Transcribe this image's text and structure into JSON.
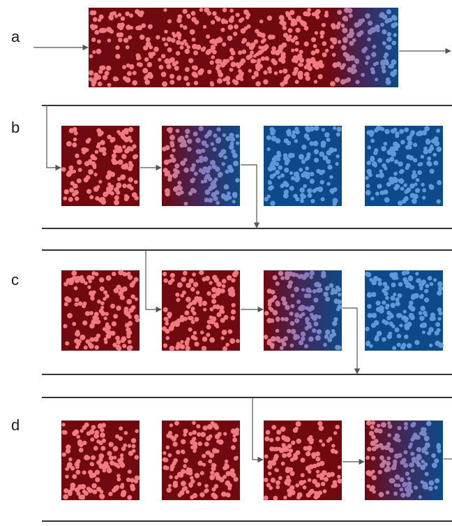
{
  "panels": [
    {
      "label": "a",
      "columns": [
        [
          "sat",
          0.78
        ],
        [
          "front",
          0.22
        ]
      ]
    },
    {
      "label": "b",
      "columns": [
        [
          "sat"
        ],
        [
          "front"
        ],
        [
          "blue"
        ],
        [
          "blue"
        ]
      ]
    },
    {
      "label": "c",
      "columns": [
        [
          "sat"
        ],
        [
          "sat"
        ],
        [
          "front"
        ],
        [
          "blue"
        ]
      ]
    },
    {
      "label": "d",
      "columns": [
        [
          "sat"
        ],
        [
          "sat"
        ],
        [
          "sat"
        ],
        [
          "front"
        ]
      ]
    }
  ],
  "colors": {
    "saturated_bg": "#6e0a10",
    "saturated_dot": "#f07a82",
    "clean_bg": "#0e4a8a",
    "clean_dot": "#5e9ad8",
    "front_mid_dot": "#8a78b8",
    "line": "#333333",
    "arrow": "#555555"
  }
}
